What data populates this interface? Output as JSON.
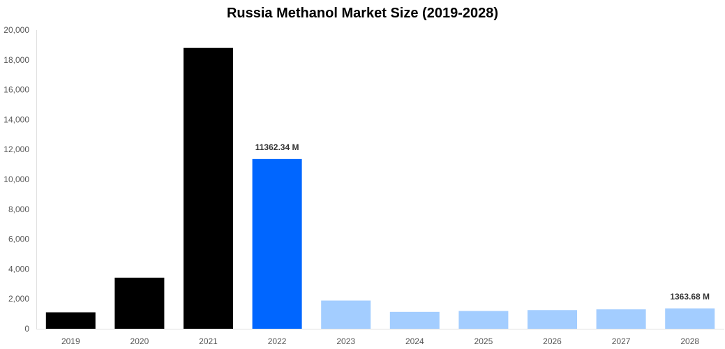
{
  "chart_data": {
    "type": "bar",
    "title": "Russia Methanol Market Size (2019-2028)",
    "xlabel": "",
    "ylabel": "",
    "ylim": [
      0,
      20000
    ],
    "yticks": [
      "0",
      "2,000",
      "4,000",
      "6,000",
      "8,000",
      "10,000",
      "12,000",
      "14,000",
      "16,000",
      "18,000",
      "20,000"
    ],
    "ytick_values": [
      0,
      2000,
      4000,
      6000,
      8000,
      10000,
      12000,
      14000,
      16000,
      18000,
      20000
    ],
    "categories": [
      "2019",
      "2020",
      "2021",
      "2022",
      "2023",
      "2024",
      "2025",
      "2026",
      "2027",
      "2028"
    ],
    "values": [
      1100,
      3420,
      18800,
      11362.34,
      1890,
      1130,
      1190,
      1250,
      1300,
      1363.68
    ],
    "colors": [
      "#000000",
      "#000000",
      "#000000",
      "#0066ff",
      "#a3cdff",
      "#a3cdff",
      "#a3cdff",
      "#a3cdff",
      "#a3cdff",
      "#a3cdff"
    ],
    "data_labels": [
      {
        "index": 3,
        "text": "11362.34 M"
      },
      {
        "index": 9,
        "text": "1363.68 M"
      }
    ],
    "grid": false,
    "legend": "none"
  }
}
